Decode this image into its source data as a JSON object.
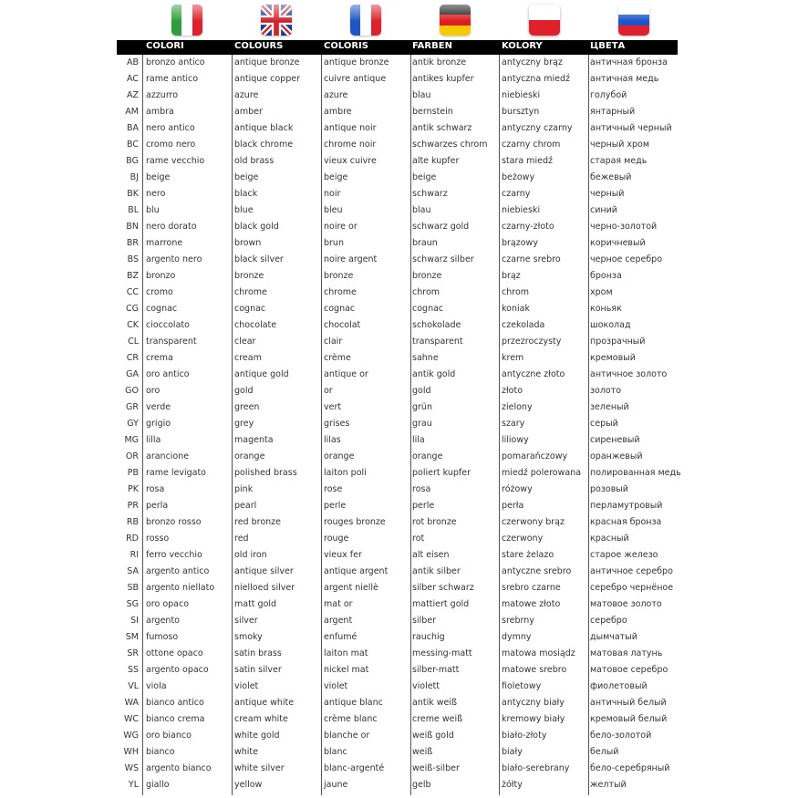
{
  "flags": [
    {
      "icon": "italy-flag-icon",
      "colors": [
        "#2e9e3c",
        "#ffffff",
        "#e0202a"
      ]
    },
    {
      "icon": "uk-flag-icon",
      "colors": [
        "#1f3a8a",
        "#ffffff",
        "#d8202a"
      ]
    },
    {
      "icon": "france-flag-icon",
      "colors": [
        "#1e56c8",
        "#ffffff",
        "#e0202a"
      ]
    },
    {
      "icon": "germany-flag-icon",
      "colors": [
        "#111111",
        "#dd1f1f",
        "#f7c900"
      ]
    },
    {
      "icon": "poland-flag-icon",
      "colors": [
        "#ffffff",
        "#e0202a"
      ]
    },
    {
      "icon": "russia-flag-icon",
      "colors": [
        "#ffffff",
        "#1e56c8",
        "#e0202a"
      ]
    }
  ],
  "headers": [
    "COLORI",
    "COLOURS",
    "COLORIS",
    "FARBEN",
    "KOLORY",
    "ЦВЕТА"
  ],
  "rows": [
    [
      "AB",
      "bronzo antico",
      "antique bronze",
      "antique bronze",
      "antik bronze",
      "antyczny brąz",
      "античная бронза"
    ],
    [
      "AC",
      "rame antico",
      "antique copper",
      "cuivre antique",
      "antikes kupfer",
      "antyczna miedź",
      "античная медь"
    ],
    [
      "AZ",
      "azzurro",
      "azure",
      "azure",
      "blau",
      "niebieski",
      "голубой"
    ],
    [
      "AM",
      "ambra",
      "amber",
      "ambre",
      "bernstein",
      "bursztyn",
      "янтарный"
    ],
    [
      "BA",
      "nero antico",
      "antique black",
      "antique noir",
      "antik schwarz",
      "antyczny czarny",
      "античный черный"
    ],
    [
      "BC",
      "cromo nero",
      "black chrome",
      "chrome noir",
      "schwarzes chrom",
      "czarny chrom",
      "черный хром"
    ],
    [
      "BG",
      "rame vecchio",
      "old brass",
      "vieux cuivre",
      "alte kupfer",
      "stara miedź",
      "старая медь"
    ],
    [
      "BJ",
      "beige",
      "beige",
      "beige",
      "beige",
      "beżowy",
      "бежевый"
    ],
    [
      "BK",
      "nero",
      "black",
      "noir",
      "schwarz",
      "czarny",
      "черный"
    ],
    [
      "BL",
      "blu",
      "blue",
      "bleu",
      "blau",
      "niebieski",
      "синий"
    ],
    [
      "BN",
      "nero dorato",
      "black gold",
      "noire or",
      "schwarz gold",
      "czarny-złoto",
      "черно-золотой"
    ],
    [
      "BR",
      "marrone",
      "brown",
      "brun",
      "braun",
      "brązowy",
      "коричневый"
    ],
    [
      "BS",
      "argento nero",
      "black silver",
      "noire argent",
      "schwarz silber",
      "czarne srebro",
      "черное серебро"
    ],
    [
      "BZ",
      "bronzo",
      "bronze",
      "bronze",
      "bronze",
      "brąz",
      "бронза"
    ],
    [
      "CC",
      "cromo",
      "chrome",
      "chrome",
      "chrom",
      "chrom",
      "хром"
    ],
    [
      "CG",
      "cognac",
      "cognac",
      "cognac",
      "cognac",
      "koniak",
      "коньяк"
    ],
    [
      "CK",
      "cioccolato",
      "chocolate",
      "chocolat",
      "schokolade",
      "czekolada",
      "шоколад"
    ],
    [
      "CL",
      "transparent",
      "clear",
      "clair",
      "transparent",
      "przezroczysty",
      "прозрачный"
    ],
    [
      "CR",
      "crema",
      "cream",
      "crème",
      "sahne",
      "krem",
      "кремовый"
    ],
    [
      "GA",
      "oro antico",
      "antique gold",
      "antique or",
      "antik gold",
      "antyczne złoto",
      "античное золото"
    ],
    [
      "GO",
      "oro",
      "gold",
      "or",
      "gold",
      "złoto",
      "золото"
    ],
    [
      "GR",
      "verde",
      "green",
      "vert",
      "grün",
      "zielony",
      "зеленый"
    ],
    [
      "GY",
      "grigio",
      "grey",
      "grises",
      "grau",
      "szary",
      "серый"
    ],
    [
      "MG",
      "lilla",
      "magenta",
      "lilas",
      "lila",
      "liliowy",
      "сиреневый"
    ],
    [
      "OR",
      "arancione",
      "orange",
      "orange",
      "orange",
      "pomarańczowy",
      "оранжевый"
    ],
    [
      "PB",
      "rame levigato",
      "polished brass",
      "laiton poli",
      "poliert kupfer",
      "miedź polerowana",
      "полированная медь"
    ],
    [
      "PK",
      "rosa",
      "pink",
      "rose",
      "rosa",
      "różowy",
      "розовый"
    ],
    [
      "PR",
      "perla",
      "pearl",
      "perle",
      "perle",
      "perła",
      "перламутровый"
    ],
    [
      "RB",
      "bronzo rosso",
      "red bronze",
      "rouges bronze",
      "rot bronze",
      "czerwony brąz",
      "красная бронза"
    ],
    [
      "RD",
      "rosso",
      "red",
      "rouge",
      "rot",
      "czerwony",
      "красный"
    ],
    [
      "RI",
      "ferro vecchio",
      "old iron",
      "vieux fer",
      "alt eisen",
      "stare żelazo",
      "старое железо"
    ],
    [
      "SA",
      "argento antico",
      "antique silver",
      "antique argent",
      "antik silber",
      "antyczne srebro",
      "античное серебро"
    ],
    [
      "SB",
      "argento niellato",
      "nielloed silver",
      "argent niellè",
      "silber schwarz",
      "srebro czarne",
      "серебро чернёное"
    ],
    [
      "SG",
      "oro opaco",
      "matt gold",
      "mat or",
      "mattiert gold",
      "matowe złoto",
      "матовое золото"
    ],
    [
      "SI",
      "argento",
      "silver",
      "argent",
      "silber",
      "srebrny",
      "серебро"
    ],
    [
      "SM",
      "fumoso",
      "smoky",
      "enfumé",
      "rauchig",
      "dymny",
      "дымчатый"
    ],
    [
      "SR",
      "ottone opaco",
      "satin brass",
      "laiton mat",
      "messing-matt",
      "matowa mosiądz",
      "матовая латунь"
    ],
    [
      "SS",
      "argento opaco",
      "satin silver",
      "nickel mat",
      "silber-matt",
      "matowe srebro",
      "матовое серебро"
    ],
    [
      "VL",
      "viola",
      "violet",
      "violet",
      "violett",
      "fioletowy",
      "фиолетовый"
    ],
    [
      "WA",
      "bianco antico",
      "antique white",
      "antique blanc",
      "antik weiß",
      "antyczny biały",
      "античный белый"
    ],
    [
      "WC",
      "bianco crema",
      "cream white",
      "crème blanc",
      "creme weiß",
      "kremowy biały",
      "кремовый белый"
    ],
    [
      "WG",
      "oro bianco",
      "white gold",
      "blanche or",
      "weiß gold",
      "biało-złoty",
      "бело-золотой"
    ],
    [
      "WH",
      "bianco",
      "white",
      "blanc",
      "weiß",
      "biały",
      "белый"
    ],
    [
      "WS",
      "argento bianco",
      "white silver",
      "blanc-argenté",
      "weiß-silber",
      "biało-serebrany",
      "бело-серебряный"
    ],
    [
      "YL",
      "giallo",
      "yellow",
      "jaune",
      "gelb",
      "żółty",
      "желтый"
    ]
  ]
}
